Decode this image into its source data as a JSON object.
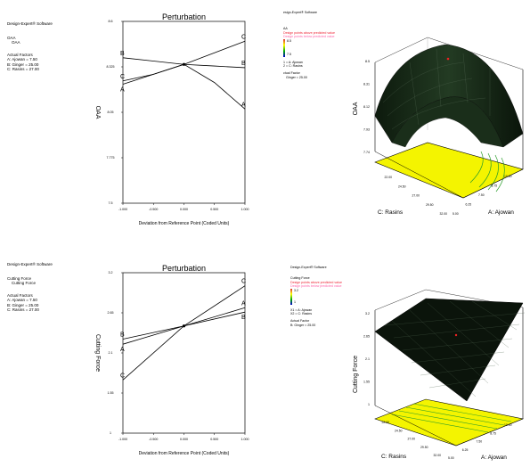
{
  "top": {
    "info": {
      "software": "Design-Expert® Software",
      "response_line1": "OAA",
      "response_line2": "OAA",
      "actual_factors_title": "Actual Factors",
      "factor_a": "A: Ajowan  = 7.50",
      "factor_b": "B: Ginger  = 25.00",
      "factor_c": "C: Rasins  = 27.00"
    },
    "surface_info": {
      "software": "esign-Expert® Software",
      "response": "AA",
      "legend_above": "Design points above predicted value",
      "legend_below": "Design points below predicted value",
      "scale_high": "8.5",
      "scale_low": "7.5",
      "x1": "1 = A: Ajowan",
      "x2": "2 = C: Rasins",
      "actual_factor_title": "ctual Factor",
      "actual_factor": "Ginger = 25.00"
    },
    "surface_labels": {
      "zlabel": "OAA",
      "xlabel": "A: Ajowan",
      "ylabel": "C: Rasins",
      "z_ticks": [
        "8.5",
        "8.31",
        "8.12",
        "7.93",
        "7.74"
      ],
      "x_ticks": [
        "5.00",
        "6.25",
        "7.50",
        "8.75",
        "10.00"
      ],
      "y_ticks": [
        "22.00",
        "24.50",
        "27.00",
        "29.50",
        "32.00"
      ]
    }
  },
  "bottom": {
    "info": {
      "software": "Design-Expert® Software",
      "response_line1": "Cutting Force",
      "response_line2": "Cutting Force",
      "actual_factors_title": "Actual Factors",
      "factor_a": "A: Ajowan  = 7.50",
      "factor_b": "B: Ginger  = 25.00",
      "factor_c": "C: Rasins  = 27.00"
    },
    "surface_info": {
      "software": "Design-Expert® Software",
      "response": "Cutting Force",
      "legend_above": "Design points above predicted value",
      "legend_below": "Design points below predicted value",
      "scale_high": "3.2",
      "scale_low": "1",
      "x1": "X1 = A: Ajowan",
      "x2": "X2 = C: Rasins",
      "actual_factor_title": "Actual Factor",
      "actual_factor": "B: Ginger = 25.00"
    },
    "surface_labels": {
      "zlabel": "Cutting Force",
      "xlabel": "A: Ajowan",
      "ylabel": "C: Rasins",
      "z_ticks": [
        "3.2",
        "2.65",
        "2.1",
        "1.55",
        "1"
      ],
      "x_ticks": [
        "5.00",
        "6.25",
        "7.50",
        "8.75",
        "10.00"
      ],
      "y_ticks": [
        "22.00",
        "24.50",
        "27.00",
        "29.50",
        "32.00"
      ]
    }
  },
  "chart_data": [
    {
      "type": "line",
      "title": "Perturbation",
      "xlabel": "Deviation from Reference Point (Coded Units)",
      "ylabel": "OAA",
      "xlim": [
        -1,
        1
      ],
      "ylim": [
        7.5,
        8.6
      ],
      "x_ticks": [
        "-1.000",
        "-0.500",
        "0.000",
        "0.500",
        "1.000"
      ],
      "y_ticks": [
        "7.5",
        "7.775",
        "8.05",
        "8.325",
        "8.6"
      ],
      "x": [
        -1,
        -0.5,
        0,
        0.5,
        1
      ],
      "series": [
        {
          "name": "A",
          "values": [
            8.22,
            8.28,
            8.34,
            8.23,
            8.07
          ]
        },
        {
          "name": "B",
          "values": [
            8.38,
            8.36,
            8.34,
            8.33,
            8.32
          ]
        },
        {
          "name": "C",
          "values": [
            8.24,
            8.28,
            8.34,
            8.41,
            8.48
          ]
        }
      ]
    },
    {
      "type": "line",
      "title": "Perturbation",
      "xlabel": "Deviation from Reference Point (Coded Units)",
      "ylabel": "Cutting Force",
      "xlim": [
        -1,
        1
      ],
      "ylim": [
        1,
        3.2
      ],
      "x_ticks": [
        "-1.000",
        "-0.500",
        "0.000",
        "0.500",
        "1.000"
      ],
      "y_ticks": [
        "1",
        "1.55",
        "2.1",
        "2.65",
        "3.2"
      ],
      "x": [
        -1,
        0,
        1
      ],
      "series": [
        {
          "name": "A",
          "values": [
            2.22,
            2.47,
            2.72
          ]
        },
        {
          "name": "B",
          "values": [
            2.29,
            2.47,
            2.66
          ]
        },
        {
          "name": "C",
          "values": [
            1.73,
            2.47,
            3.02
          ]
        }
      ]
    }
  ]
}
